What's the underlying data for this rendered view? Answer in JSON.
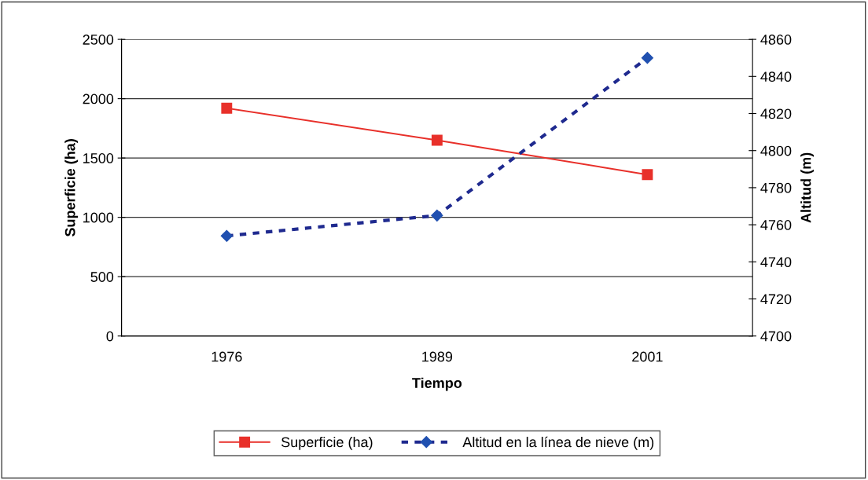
{
  "chart_data": {
    "type": "line",
    "xlabel": "Tiempo",
    "ylabel": "Superficie (ha)",
    "y2label": "Altitud (m)",
    "categories": [
      "1976",
      "1989",
      "2001"
    ],
    "series": [
      {
        "name": "Superficie (ha)",
        "color": "#e8302a",
        "values": [
          1920,
          1650,
          1360
        ],
        "marker": "square",
        "line_style": "solid"
      },
      {
        "name": "Altitud en la línea de nieve (m)",
        "color": "#1f2a8f",
        "values": [
          4754,
          4765,
          4850
        ],
        "marker": "diamond",
        "line_style": "dashed",
        "axis": "y2"
      }
    ],
    "ylim": [
      0,
      2500
    ],
    "yticks": [
      0,
      500,
      1000,
      1500,
      2000,
      2500
    ],
    "y2lim": [
      4700,
      4860
    ],
    "y2ticks": [
      4700,
      4720,
      4740,
      4760,
      4780,
      4800,
      4820,
      4840,
      4860
    ],
    "grid": "y",
    "legend": "bottom"
  }
}
